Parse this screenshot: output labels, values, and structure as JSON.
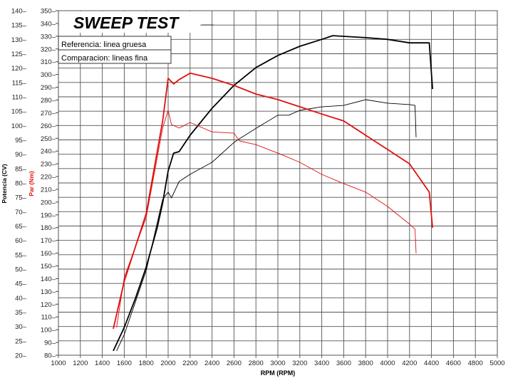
{
  "chart_data": {
    "type": "line",
    "title": "SWEEP TEST",
    "legend": [
      "Referencia: linea gruesa",
      "Comparacion: lineas fina"
    ],
    "legend_placement": "top-left",
    "xlabel": "RPM (RPM)",
    "ylabel_left": "Potencia (CV)",
    "ylabel_right": "Par (Nm)",
    "xlim": [
      1000,
      5000
    ],
    "ylim_power": [
      20,
      140
    ],
    "ylim_torque": [
      80,
      350
    ],
    "x_ticks": [
      1000,
      1200,
      1400,
      1600,
      1800,
      2000,
      2200,
      2400,
      2600,
      2800,
      3000,
      3200,
      3400,
      3600,
      3800,
      4000,
      4200,
      4400,
      4600,
      4800,
      5000
    ],
    "power_ticks": [
      20,
      25,
      30,
      35,
      40,
      45,
      50,
      55,
      60,
      65,
      70,
      75,
      80,
      85,
      90,
      95,
      100,
      105,
      110,
      115,
      120,
      125,
      130,
      135,
      140
    ],
    "torque_ticks": [
      80,
      90,
      100,
      110,
      120,
      130,
      140,
      150,
      160,
      170,
      180,
      190,
      200,
      210,
      220,
      230,
      240,
      250,
      260,
      270,
      280,
      290,
      300,
      310,
      320,
      330,
      340,
      350
    ],
    "grid": true,
    "colors": {
      "power": "#000000",
      "torque": "#e01010"
    },
    "series": [
      {
        "name": "Potencia referencia",
        "axis": "power",
        "weight": "thick",
        "x": [
          1500,
          1600,
          1700,
          1800,
          1900,
          1950,
          2000,
          2050,
          2100,
          2200,
          2400,
          2600,
          2800,
          3000,
          3200,
          3400,
          3500,
          3800,
          4000,
          4200,
          4380,
          4410
        ],
        "y": [
          21.5,
          29.7,
          39.6,
          50.7,
          64.4,
          73,
          84.2,
          90.4,
          90.9,
          96.6,
          106,
          114,
          120.2,
          124.4,
          127.6,
          130,
          131.3,
          130.6,
          130,
          128.8,
          128.8,
          112.7
        ]
      },
      {
        "name": "Potencia comparacion",
        "axis": "power",
        "weight": "thin",
        "x": [
          1530,
          1600,
          1800,
          1950,
          2000,
          2030,
          2100,
          2200,
          2400,
          2600,
          2650,
          2800,
          3000,
          3100,
          3200,
          3400,
          3600,
          3800,
          4000,
          4200,
          4250,
          4260
        ],
        "y": [
          21.5,
          27.2,
          49.5,
          74.3,
          76.8,
          74.8,
          80.5,
          83,
          87.2,
          94.1,
          95.4,
          99,
          103.6,
          103.6,
          105.3,
          106.5,
          107,
          109,
          107.8,
          107.3,
          107,
          95.9
        ]
      },
      {
        "name": "Par referencia",
        "axis": "torque",
        "weight": "thick",
        "x": [
          1500,
          1600,
          1800,
          1950,
          2000,
          2050,
          2100,
          2200,
          2400,
          2600,
          2800,
          3000,
          3200,
          3400,
          3600,
          3800,
          4000,
          4200,
          4380,
          4410
        ],
        "y": [
          100.7,
          138,
          191,
          263.6,
          297,
          292.6,
          296,
          301,
          297,
          291.4,
          284.7,
          280.3,
          274.7,
          269,
          263.6,
          252.4,
          241.2,
          230,
          207.8,
          179.9
        ]
      },
      {
        "name": "Par comparacion",
        "axis": "torque",
        "weight": "thin",
        "x": [
          1530,
          1600,
          1800,
          1950,
          2000,
          2030,
          2100,
          2200,
          2400,
          2600,
          2650,
          2800,
          3000,
          3200,
          3400,
          3600,
          3800,
          4000,
          4200,
          4250,
          4260
        ],
        "y": [
          101.8,
          141,
          188,
          258,
          272,
          260.8,
          258,
          262.4,
          255,
          254,
          247.9,
          245,
          238.4,
          231.2,
          221.7,
          214.5,
          207.8,
          196.6,
          182.7,
          178.8,
          160
        ]
      }
    ]
  }
}
